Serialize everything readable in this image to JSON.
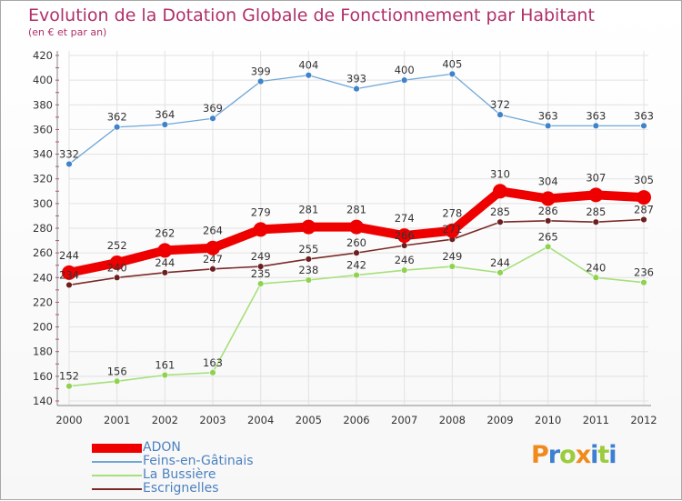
{
  "chart_data": {
    "type": "line",
    "title": "Evolution de la Dotation Globale de Fonctionnement par Habitant",
    "subtitle": "(en € et par an)",
    "xlabel": "",
    "ylabel": "",
    "ylim": [
      140,
      420
    ],
    "yticks": [
      140,
      160,
      180,
      200,
      220,
      240,
      260,
      280,
      300,
      320,
      340,
      360,
      380,
      400,
      420
    ],
    "categories": [
      "2000",
      "2001",
      "2002",
      "2003",
      "2004",
      "2005",
      "2006",
      "2007",
      "2008",
      "2009",
      "2010",
      "2011",
      "2012"
    ],
    "series": [
      {
        "name": "ADON",
        "color": "#ee0000",
        "values": [
          244,
          252,
          262,
          264,
          279,
          281,
          281,
          274,
          278,
          310,
          304,
          307,
          305
        ]
      },
      {
        "name": "Feins-en-Gâtinais",
        "color": "#6fa7d8",
        "values": [
          332,
          362,
          364,
          369,
          399,
          404,
          393,
          400,
          405,
          372,
          363,
          363,
          363
        ]
      },
      {
        "name": "La Bussière",
        "color": "#a6e07a",
        "values": [
          152,
          156,
          161,
          163,
          235,
          238,
          242,
          246,
          249,
          244,
          265,
          240,
          236
        ]
      },
      {
        "name": "Escrignelles",
        "color": "#7b2a2a",
        "values": [
          234,
          240,
          244,
          247,
          249,
          255,
          260,
          266,
          271,
          285,
          286,
          285,
          287
        ]
      }
    ],
    "legend_position": "bottom-left",
    "grid": true
  },
  "logo": {
    "text": "Proxiti",
    "letters": [
      {
        "ch": "P",
        "color": "#f08a1c"
      },
      {
        "ch": "r",
        "color": "#3d7fd0"
      },
      {
        "ch": "o",
        "color": "#9ccc3c"
      },
      {
        "ch": "x",
        "color": "#f08a1c"
      },
      {
        "ch": "i",
        "color": "#3d7fd0"
      },
      {
        "ch": "t",
        "color": "#9ccc3c"
      },
      {
        "ch": "i",
        "color": "#3d7fd0"
      }
    ]
  }
}
